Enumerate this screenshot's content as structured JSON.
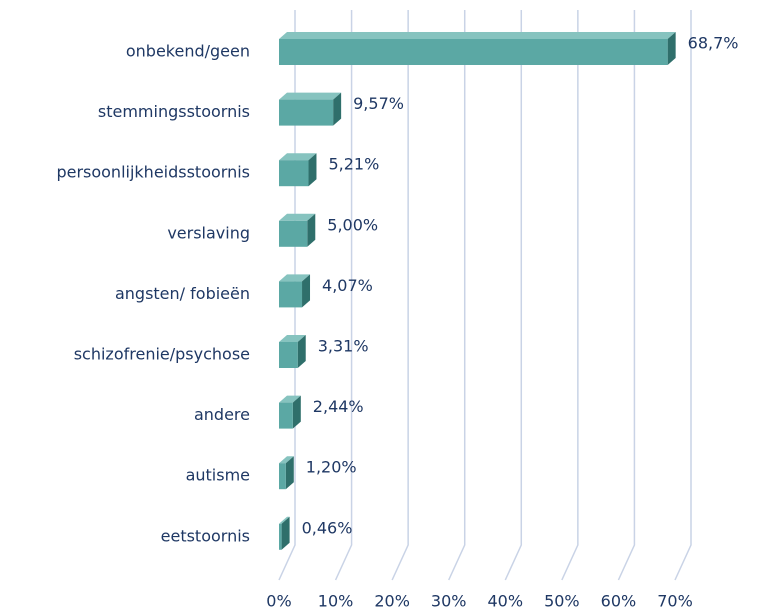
{
  "chart_data": {
    "type": "bar3d_horizontal",
    "categories": [
      "onbekend/geen",
      "stemmingsstoornis",
      "persoonlijkheidsstoornis",
      "verslaving",
      "angsten/ fobieën",
      "schizofrenie/psychose",
      "andere",
      "autisme",
      "eetstoornis"
    ],
    "values": [
      68.7,
      9.57,
      5.21,
      5.0,
      4.07,
      3.31,
      2.44,
      1.2,
      0.46
    ],
    "value_labels": [
      "68,7%",
      "9,57%",
      "5,21%",
      "5,00%",
      "4,07%",
      "3,31%",
      "2,44%",
      "1,20%",
      "0,46%"
    ],
    "color": "#5ba8a4",
    "xlim": [
      0,
      70
    ],
    "xticks": [
      {
        "value": 0,
        "label": "0%"
      },
      {
        "value": 10,
        "label": "10%"
      },
      {
        "value": 20,
        "label": "20%"
      },
      {
        "value": 30,
        "label": "30%"
      },
      {
        "value": 40,
        "label": "40%"
      },
      {
        "value": 50,
        "label": "50%"
      },
      {
        "value": 60,
        "label": "60%"
      },
      {
        "value": 70,
        "label": "70%"
      }
    ],
    "grid": true
  }
}
